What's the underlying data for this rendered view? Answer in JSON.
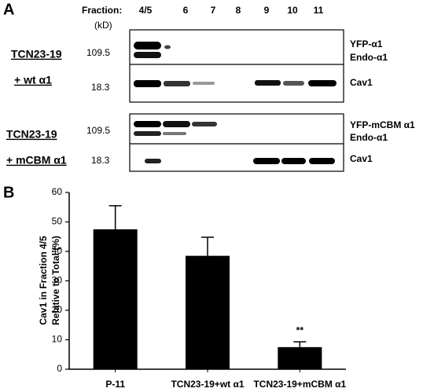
{
  "panel_a": {
    "label": "A",
    "fraction_label": "Fraction:",
    "fractions": [
      "4/5",
      "6",
      "7",
      "8",
      "9",
      "10",
      "11"
    ],
    "unit": "(kD)",
    "blot_1": {
      "sample": "TCN23-19",
      "condition": "+ wt α1",
      "markers": [
        "109.5",
        "18.3"
      ],
      "bands": [
        "YFP-α1",
        "Endo-α1",
        "Cav1"
      ]
    },
    "blot_2": {
      "sample": "TCN23-19",
      "condition": "+ mCBM α1",
      "markers": [
        "109.5",
        "18.3"
      ],
      "bands": [
        "YFP-mCBM α1",
        "Endo-α1",
        "Cav1"
      ]
    }
  },
  "chart_data": {
    "type": "bar",
    "label": "B",
    "ylabel": [
      "Cav1 in Fraction 4/5",
      "Relative to Total (%)"
    ],
    "categories": [
      "P-11",
      "TCN23-19+wt α1",
      "TCN23-19+mCBM α1"
    ],
    "values": [
      47.5,
      38.5,
      7.5
    ],
    "errors": [
      8,
      6.3,
      1.8
    ],
    "annotations": [
      "",
      "",
      "**"
    ],
    "color": "#000000",
    "ylim": [
      0,
      60
    ],
    "yticks": [
      0,
      10,
      20,
      30,
      40,
      50,
      60
    ]
  }
}
